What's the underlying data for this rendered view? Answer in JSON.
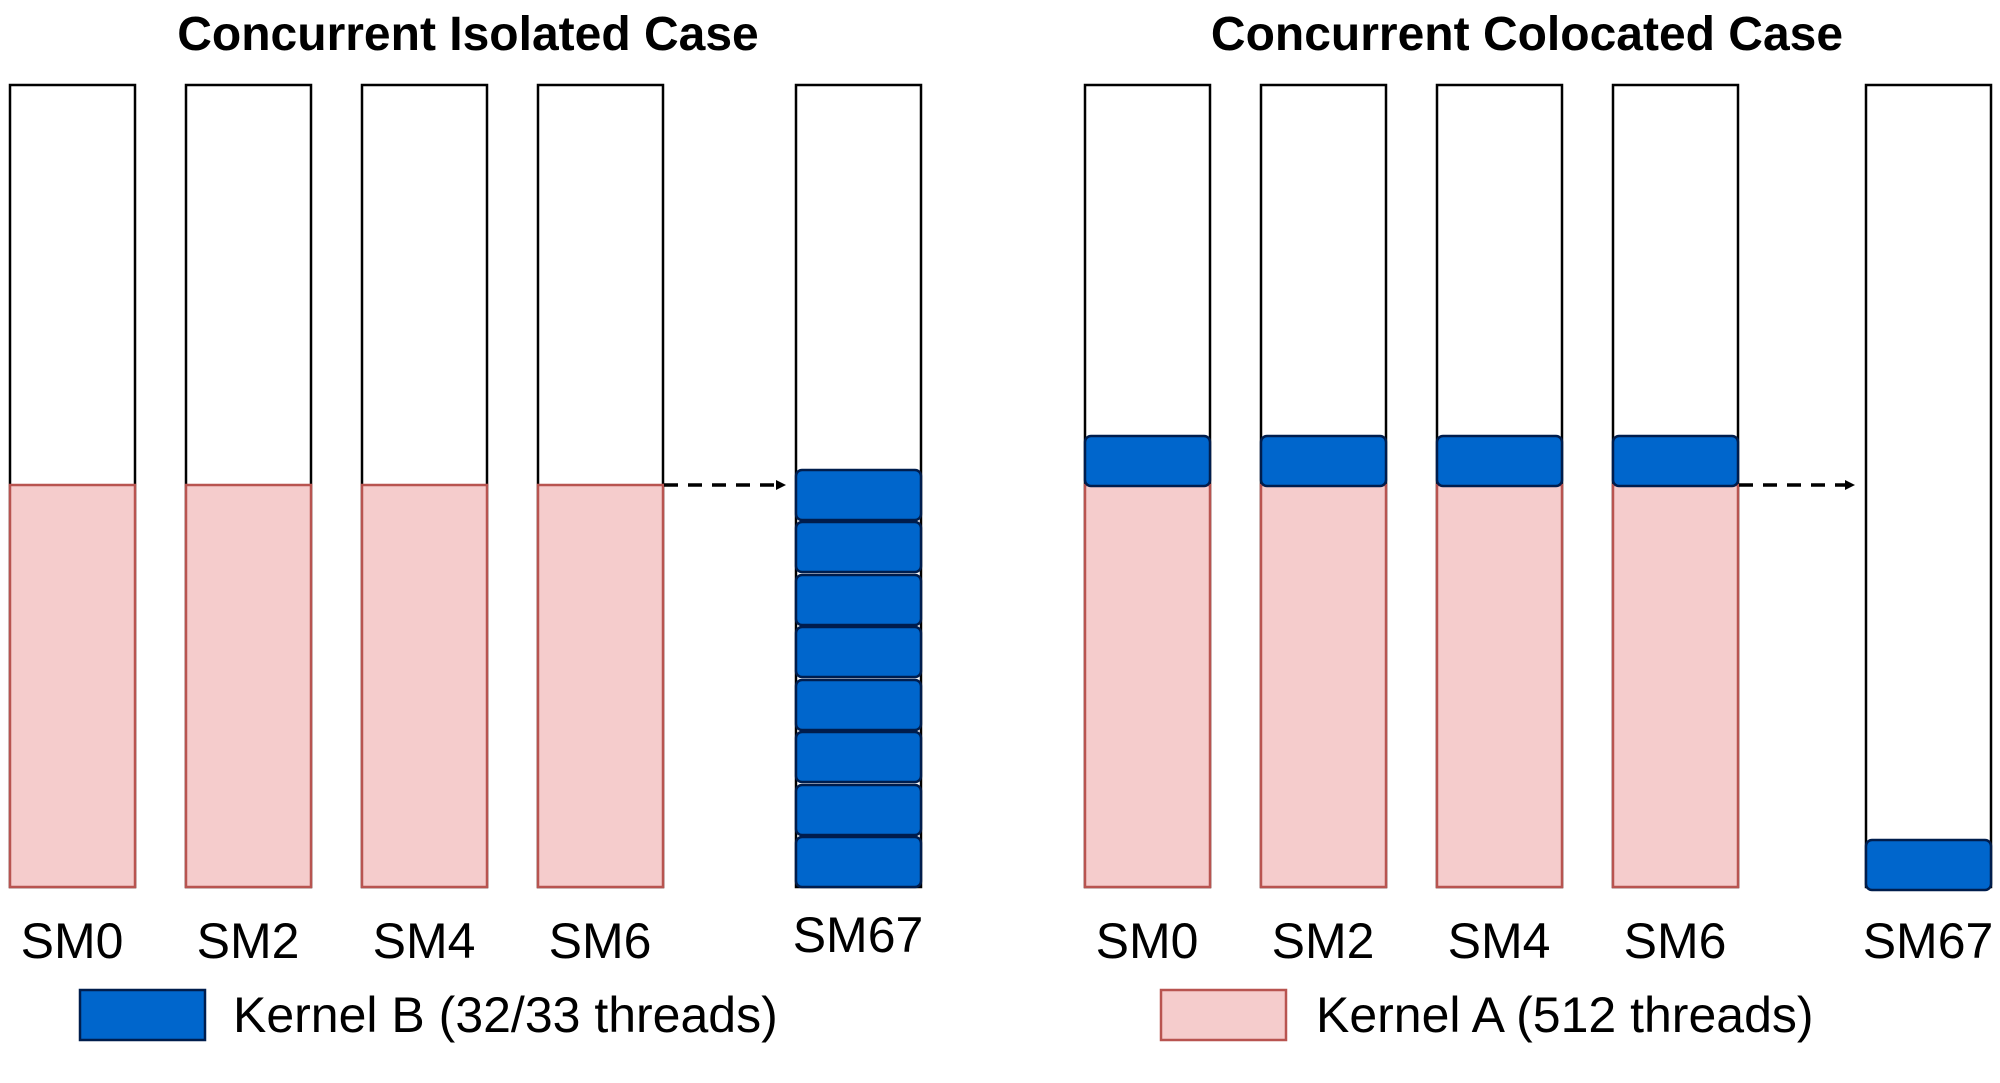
{
  "panels": [
    {
      "title": "Concurrent Isolated Case",
      "sm_labels": [
        "SM0",
        "SM2",
        "SM4",
        "SM6",
        "SM67"
      ],
      "legend": {
        "label": "Kernel B (32/33 threads)",
        "kernel": "B"
      }
    },
    {
      "title": "Concurrent Colocated Case",
      "sm_labels": [
        "SM0",
        "SM2",
        "SM4",
        "SM6",
        "SM67"
      ],
      "legend": {
        "label": "Kernel A (512 threads)",
        "kernel": "A"
      }
    }
  ],
  "colors": {
    "kernel_a_fill": "#f5cccc",
    "kernel_a_stroke": "#b85450",
    "kernel_b_fill": "#0066cc",
    "kernel_b_stroke": "#001d4d"
  }
}
